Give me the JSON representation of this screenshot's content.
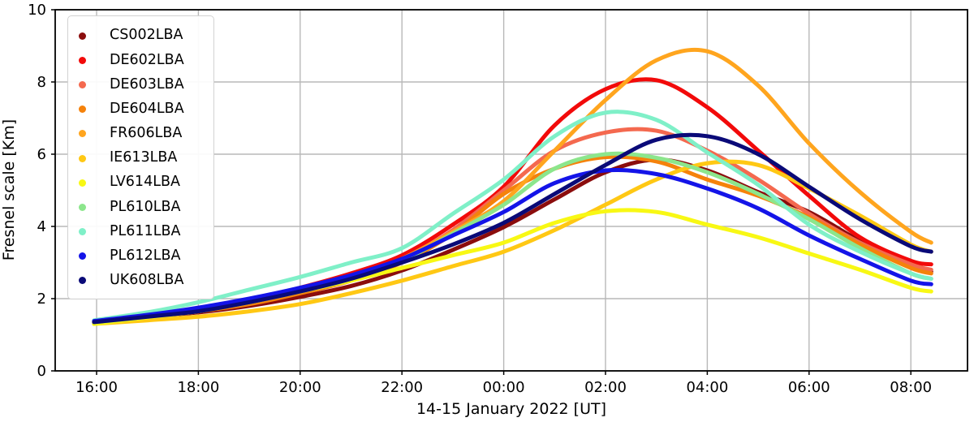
{
  "chart_data": {
    "type": "line",
    "title": "",
    "xlabel": "14-15 January 2022 [UT]",
    "ylabel": "Fresnel scale [Km]",
    "grid": true,
    "legend_position": "upper left",
    "ylim": [
      0,
      10
    ],
    "xlim_hours": [
      15.19,
      33.11
    ],
    "y_ticks": [
      0,
      2,
      4,
      6,
      8,
      10
    ],
    "x_ticks": [
      {
        "hour": 16,
        "label": "16:00"
      },
      {
        "hour": 18,
        "label": "18:00"
      },
      {
        "hour": 20,
        "label": "20:00"
      },
      {
        "hour": 22,
        "label": "22:00"
      },
      {
        "hour": 24,
        "label": "00:00"
      },
      {
        "hour": 26,
        "label": "02:00"
      },
      {
        "hour": 28,
        "label": "04:00"
      },
      {
        "hour": 30,
        "label": "06:00"
      },
      {
        "hour": 32,
        "label": "08:00"
      }
    ],
    "x_hours": [
      15.95,
      17,
      18,
      19,
      20,
      21,
      22,
      23,
      24,
      25,
      26,
      27,
      28,
      29,
      30,
      31,
      32,
      32.4
    ],
    "series": [
      {
        "name": "CS002LBA",
        "color": "#8B0D0D",
        "values": [
          1.35,
          1.5,
          1.62,
          1.8,
          2.05,
          2.35,
          2.78,
          3.35,
          3.98,
          4.75,
          5.5,
          5.85,
          5.55,
          4.95,
          4.4,
          3.6,
          2.95,
          2.75
        ]
      },
      {
        "name": "DE602LBA",
        "color": "#F20A0A",
        "values": [
          1.35,
          1.52,
          1.7,
          1.95,
          2.3,
          2.7,
          3.2,
          4.05,
          5.1,
          6.8,
          7.8,
          8.05,
          7.3,
          6.1,
          4.85,
          3.7,
          3.05,
          2.95
        ]
      },
      {
        "name": "DE603LBA",
        "color": "#F4694F",
        "values": [
          1.35,
          1.5,
          1.65,
          1.9,
          2.2,
          2.6,
          3.1,
          3.9,
          5.0,
          6.1,
          6.6,
          6.65,
          6.1,
          5.3,
          4.35,
          3.55,
          2.95,
          2.8
        ]
      },
      {
        "name": "DE604LBA",
        "color": "#F5820B",
        "values": [
          1.35,
          1.5,
          1.65,
          1.85,
          2.15,
          2.5,
          3.0,
          3.8,
          4.9,
          5.6,
          5.92,
          5.8,
          5.3,
          4.85,
          4.25,
          3.5,
          2.85,
          2.7
        ]
      },
      {
        "name": "FR606LBA",
        "color": "#FFA51E",
        "values": [
          1.35,
          1.5,
          1.65,
          1.9,
          2.2,
          2.55,
          3.1,
          3.85,
          4.7,
          6.1,
          7.5,
          8.6,
          8.85,
          7.9,
          6.3,
          4.95,
          3.85,
          3.55
        ]
      },
      {
        "name": "IE613LBA",
        "color": "#FFC814",
        "values": [
          1.3,
          1.4,
          1.5,
          1.65,
          1.85,
          2.15,
          2.5,
          2.9,
          3.3,
          3.9,
          4.6,
          5.3,
          5.75,
          5.7,
          5.05,
          4.3,
          3.5,
          3.3
        ]
      },
      {
        "name": "LV614LBA",
        "color": "#F8F814",
        "values": [
          1.3,
          1.48,
          1.65,
          1.9,
          2.2,
          2.5,
          2.85,
          3.2,
          3.55,
          4.1,
          4.42,
          4.4,
          4.05,
          3.7,
          3.25,
          2.8,
          2.3,
          2.2
        ]
      },
      {
        "name": "PL610LBA",
        "color": "#8CE68C",
        "values": [
          1.35,
          1.5,
          1.67,
          1.9,
          2.2,
          2.55,
          3.05,
          3.8,
          4.6,
          5.6,
          6.0,
          5.9,
          5.5,
          4.9,
          4.2,
          3.4,
          2.7,
          2.55
        ]
      },
      {
        "name": "PL611LBA",
        "color": "#7FF0C8",
        "values": [
          1.4,
          1.62,
          1.9,
          2.25,
          2.6,
          3.0,
          3.4,
          4.35,
          5.3,
          6.5,
          7.15,
          6.95,
          6.05,
          5.15,
          4.05,
          3.3,
          2.7,
          2.55
        ]
      },
      {
        "name": "PL612LBA",
        "color": "#1414E8",
        "values": [
          1.38,
          1.55,
          1.75,
          2.0,
          2.3,
          2.65,
          3.1,
          3.75,
          4.4,
          5.2,
          5.55,
          5.45,
          5.05,
          4.5,
          3.75,
          3.1,
          2.5,
          2.4
        ]
      },
      {
        "name": "UK608LBA",
        "color": "#0A0A78",
        "values": [
          1.35,
          1.5,
          1.65,
          1.9,
          2.2,
          2.55,
          3.0,
          3.5,
          4.1,
          4.9,
          5.7,
          6.4,
          6.5,
          6.0,
          5.1,
          4.2,
          3.45,
          3.3
        ]
      }
    ],
    "style": {
      "grid_color": "#b8b8b8",
      "spine_color": "#000000",
      "line_width": 5
    }
  }
}
